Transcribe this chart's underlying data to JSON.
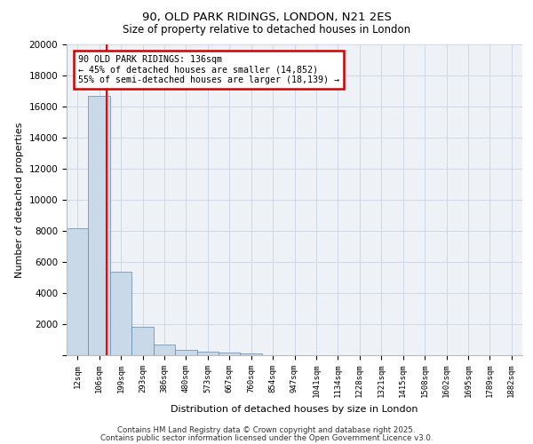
{
  "title1": "90, OLD PARK RIDINGS, LONDON, N21 2ES",
  "title2": "Size of property relative to detached houses in London",
  "xlabel": "Distribution of detached houses by size in London",
  "ylabel": "Number of detached properties",
  "bar_labels": [
    "12sqm",
    "106sqm",
    "199sqm",
    "293sqm",
    "386sqm",
    "480sqm",
    "573sqm",
    "667sqm",
    "760sqm",
    "854sqm",
    "947sqm",
    "1041sqm",
    "1134sqm",
    "1228sqm",
    "1321sqm",
    "1415sqm",
    "1508sqm",
    "1602sqm",
    "1695sqm",
    "1789sqm",
    "1882sqm"
  ],
  "bar_values": [
    8200,
    16700,
    5400,
    1850,
    700,
    330,
    230,
    170,
    130,
    0,
    0,
    0,
    0,
    0,
    0,
    0,
    0,
    0,
    0,
    0,
    0
  ],
  "bar_color": "#c9d9e8",
  "bar_edge_color": "#5a8ab0",
  "red_line_x": 1.35,
  "annotation_text": "90 OLD PARK RIDINGS: 136sqm\n← 45% of detached houses are smaller (14,852)\n55% of semi-detached houses are larger (18,139) →",
  "annotation_box_color": "#ffffff",
  "annotation_box_edge": "#cc0000",
  "ylim": [
    0,
    20000
  ],
  "yticks": [
    0,
    2000,
    4000,
    6000,
    8000,
    10000,
    12000,
    14000,
    16000,
    18000,
    20000
  ],
  "footer1": "Contains HM Land Registry data © Crown copyright and database right 2025.",
  "footer2": "Contains public sector information licensed under the Open Government Licence v3.0.",
  "bg_color": "#eef2f7",
  "grid_color": "#ccd8e8"
}
